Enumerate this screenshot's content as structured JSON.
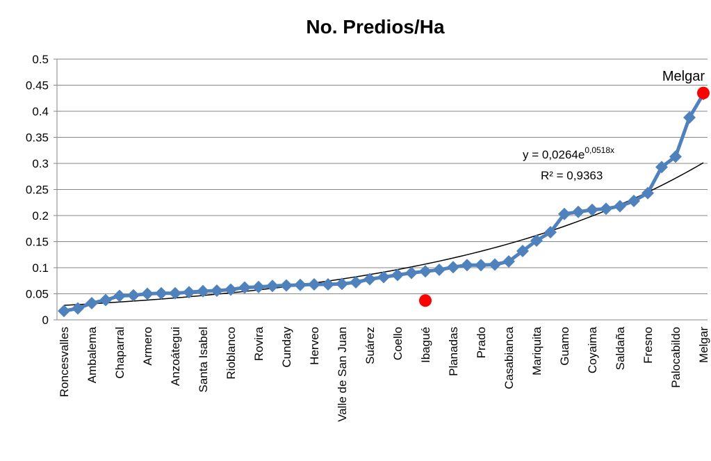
{
  "chart_data": {
    "type": "line",
    "title": "No. Predios/Ha",
    "categories": [
      "Roncesvalles",
      null,
      "Ambalema",
      null,
      "Chaparral",
      null,
      "Armero",
      null,
      "Anzoátegui",
      null,
      "Santa Isabel",
      null,
      "Rioblanco",
      null,
      "Rovira",
      null,
      "Cunday",
      null,
      "Herveo",
      null,
      "Valle de San Juan",
      null,
      "Suárez",
      null,
      "Coello",
      null,
      "Ibagué",
      null,
      "Planadas",
      null,
      "Prado",
      null,
      "Casabianca",
      null,
      "Mariquita",
      null,
      "Guamo",
      null,
      "Coyaima",
      null,
      "Saldaña",
      null,
      "Fresno",
      null,
      "Palocabildo",
      null,
      "Melgar"
    ],
    "series": [
      {
        "color": "#4f81bd",
        "marker": "diamond",
        "line": true,
        "values": [
          0.017,
          0.022,
          0.032,
          0.038,
          0.046,
          0.047,
          0.05,
          0.051,
          0.051,
          0.053,
          0.055,
          0.056,
          0.058,
          0.062,
          0.063,
          0.065,
          0.066,
          0.067,
          0.068,
          0.068,
          0.069,
          0.072,
          0.078,
          0.082,
          0.086,
          0.09,
          0.093,
          0.096,
          0.101,
          0.105,
          0.105,
          0.106,
          0.112,
          0.132,
          0.152,
          0.168,
          0.203,
          0.207,
          0.211,
          0.213,
          0.218,
          0.228,
          0.243,
          0.293,
          0.313,
          0.388,
          0.433
        ]
      },
      {
        "color": "#ff0000",
        "marker": "circle",
        "line": false,
        "values": [
          null,
          null,
          null,
          null,
          null,
          null,
          null,
          null,
          null,
          null,
          null,
          null,
          null,
          null,
          null,
          null,
          null,
          null,
          null,
          null,
          null,
          null,
          null,
          null,
          null,
          null,
          0.037,
          null,
          null,
          null,
          null,
          null,
          null,
          null,
          null,
          null,
          null,
          null,
          null,
          null,
          null,
          null,
          null,
          null,
          null,
          null,
          0.435
        ]
      }
    ],
    "trendline": {
      "a": 0.0264,
      "b": 0.0518,
      "color": "#000000",
      "equation_base": "y = 0,0264e",
      "equation_exponent": "0,0518x",
      "r2_label": "R² = 0,9363"
    },
    "annotations": [
      "Melgar"
    ],
    "ylim": [
      0,
      0.5
    ],
    "yticks": [
      0,
      0.05,
      0.1,
      0.15,
      0.2,
      0.25,
      0.3,
      0.35,
      0.4,
      0.45,
      0.5
    ],
    "grid": true
  }
}
